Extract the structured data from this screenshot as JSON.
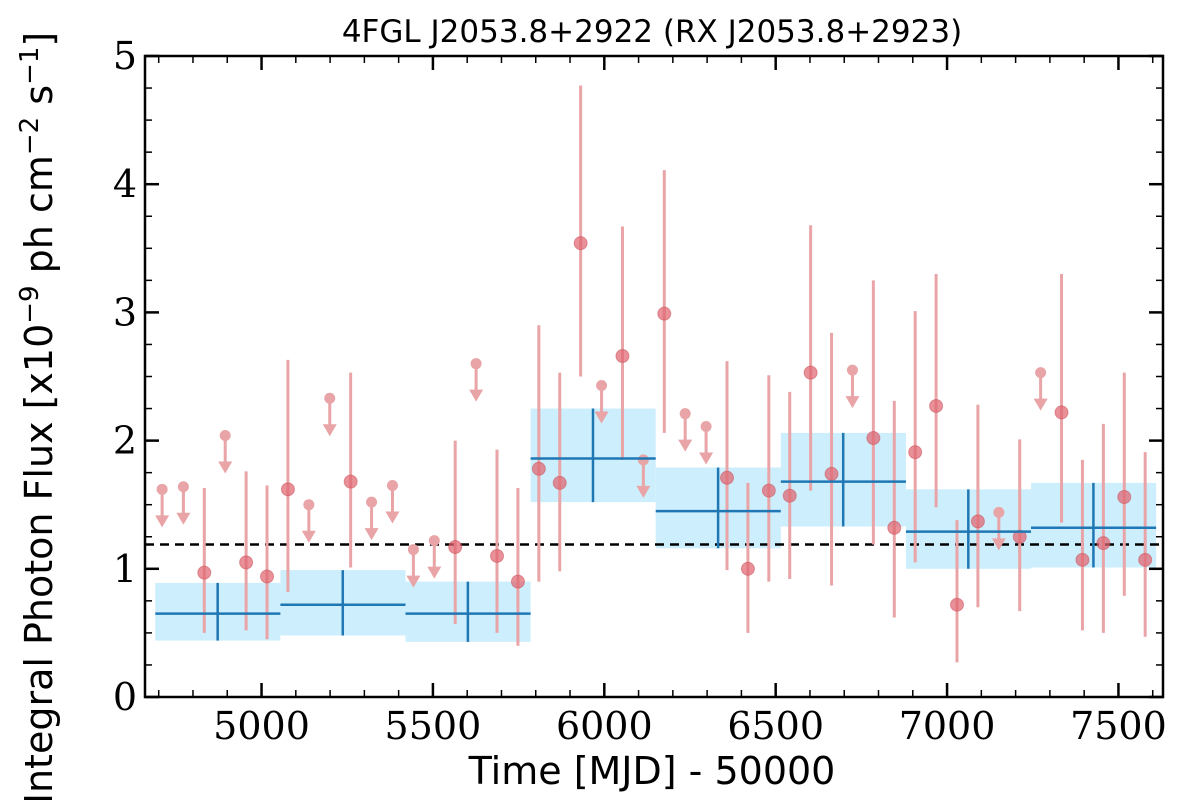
{
  "chart_data": {
    "type": "scatter",
    "title": "4FGL J2053.8+2922 (RX J2053.8+2923)",
    "xlabel": "Time [MJD] - 50000",
    "ylabel": "Integral Photon Flux [x10",
    "ylabel_exp": "−9",
    "ylabel_mid": " ph cm",
    "ylabel_exp2": "−2",
    "ylabel_tail": " s",
    "ylabel_exp3": "−1",
    "ylabel_close": "]",
    "xlim": [
      4660,
      7630
    ],
    "ylim": [
      0,
      5
    ],
    "xticks": [
      5000,
      5500,
      6000,
      6500,
      7000,
      7500
    ],
    "yticks": [
      0,
      1,
      2,
      3,
      4,
      5
    ],
    "reference_level": 1.19,
    "colors": {
      "points": "#e06570",
      "errorbars": "#e8a4a6",
      "bins_fill": "#cdeefc",
      "bins_line": "#1f77b4",
      "reference_line": "#000000"
    },
    "binned_series": [
      {
        "x_start": 4690,
        "x_end": 5055,
        "x": 4872,
        "y": 0.65,
        "y_low": 0.44,
        "y_high": 0.89
      },
      {
        "x_start": 5055,
        "x_end": 5420,
        "x": 5237,
        "y": 0.72,
        "y_low": 0.48,
        "y_high": 0.99
      },
      {
        "x_start": 5420,
        "x_end": 5785,
        "x": 5602,
        "y": 0.65,
        "y_low": 0.43,
        "y_high": 0.9
      },
      {
        "x_start": 5785,
        "x_end": 6150,
        "x": 5967,
        "y": 1.86,
        "y_low": 1.52,
        "y_high": 2.25
      },
      {
        "x_start": 6150,
        "x_end": 6515,
        "x": 6332,
        "y": 1.45,
        "y_low": 1.16,
        "y_high": 1.79
      },
      {
        "x_start": 6515,
        "x_end": 6880,
        "x": 6697,
        "y": 1.68,
        "y_low": 1.33,
        "y_high": 2.06
      },
      {
        "x_start": 6880,
        "x_end": 7245,
        "x": 7062,
        "y": 1.29,
        "y_low": 1.0,
        "y_high": 1.62
      },
      {
        "x_start": 7245,
        "x_end": 7610,
        "x": 7427,
        "y": 1.32,
        "y_low": 1.01,
        "y_high": 1.67
      }
    ],
    "points": [
      {
        "x": 4710,
        "y": 1.62,
        "upper_limit": true
      },
      {
        "x": 4772,
        "y": 1.64,
        "upper_limit": true
      },
      {
        "x": 4833,
        "y": 0.97,
        "y_low": 0.5,
        "y_high": 1.63
      },
      {
        "x": 4894,
        "y": 2.04,
        "upper_limit": true
      },
      {
        "x": 4955,
        "y": 1.05,
        "y_low": 0.52,
        "y_high": 1.76
      },
      {
        "x": 5016,
        "y": 0.94,
        "y_low": 0.45,
        "y_high": 1.65
      },
      {
        "x": 5077,
        "y": 1.62,
        "y_low": 0.82,
        "y_high": 2.63
      },
      {
        "x": 5138,
        "y": 1.5,
        "upper_limit": true
      },
      {
        "x": 5199,
        "y": 2.33,
        "upper_limit": true
      },
      {
        "x": 5260,
        "y": 1.68,
        "y_low": 1.01,
        "y_high": 2.53
      },
      {
        "x": 5321,
        "y": 1.52,
        "upper_limit": true
      },
      {
        "x": 5382,
        "y": 1.65,
        "upper_limit": true
      },
      {
        "x": 5443,
        "y": 1.15,
        "upper_limit": true
      },
      {
        "x": 5504,
        "y": 1.22,
        "upper_limit": true
      },
      {
        "x": 5565,
        "y": 1.17,
        "y_low": 0.57,
        "y_high": 2.0
      },
      {
        "x": 5626,
        "y": 2.6,
        "upper_limit": true
      },
      {
        "x": 5687,
        "y": 1.1,
        "y_low": 0.5,
        "y_high": 1.93
      },
      {
        "x": 5748,
        "y": 0.9,
        "y_low": 0.4,
        "y_high": 1.63
      },
      {
        "x": 5809,
        "y": 1.78,
        "y_low": 0.9,
        "y_high": 2.9
      },
      {
        "x": 5870,
        "y": 1.67,
        "y_low": 0.98,
        "y_high": 2.53
      },
      {
        "x": 5931,
        "y": 3.54,
        "y_low": 2.5,
        "y_high": 4.77
      },
      {
        "x": 5992,
        "y": 2.43,
        "upper_limit": true
      },
      {
        "x": 6053,
        "y": 2.66,
        "y_low": 1.85,
        "y_high": 3.67
      },
      {
        "x": 6114,
        "y": 1.85,
        "upper_limit": true
      },
      {
        "x": 6175,
        "y": 2.99,
        "y_low": 2.06,
        "y_high": 4.11
      },
      {
        "x": 6236,
        "y": 2.21,
        "upper_limit": true
      },
      {
        "x": 6297,
        "y": 2.11,
        "upper_limit": true
      },
      {
        "x": 6358,
        "y": 1.71,
        "y_low": 0.99,
        "y_high": 2.62
      },
      {
        "x": 6419,
        "y": 1.0,
        "y_low": 0.5,
        "y_high": 1.67
      },
      {
        "x": 6480,
        "y": 1.61,
        "y_low": 0.9,
        "y_high": 2.51
      },
      {
        "x": 6541,
        "y": 1.57,
        "y_low": 0.92,
        "y_high": 2.38
      },
      {
        "x": 6602,
        "y": 2.53,
        "y_low": 1.61,
        "y_high": 3.68
      },
      {
        "x": 6663,
        "y": 1.74,
        "y_low": 0.87,
        "y_high": 2.84
      },
      {
        "x": 6724,
        "y": 2.55,
        "upper_limit": true
      },
      {
        "x": 6785,
        "y": 2.02,
        "y_low": 1.19,
        "y_high": 3.25
      },
      {
        "x": 6846,
        "y": 1.32,
        "y_low": 0.62,
        "y_high": 2.31
      },
      {
        "x": 6907,
        "y": 1.91,
        "y_low": 1.05,
        "y_high": 3.01
      },
      {
        "x": 6968,
        "y": 2.27,
        "y_low": 1.48,
        "y_high": 3.3
      },
      {
        "x": 7029,
        "y": 0.72,
        "y_low": 0.27,
        "y_high": 1.38
      },
      {
        "x": 7090,
        "y": 1.37,
        "y_low": 0.7,
        "y_high": 2.28
      },
      {
        "x": 7151,
        "y": 1.44,
        "upper_limit": true
      },
      {
        "x": 7212,
        "y": 1.25,
        "y_low": 0.67,
        "y_high": 2.01
      },
      {
        "x": 7273,
        "y": 2.53,
        "upper_limit": true
      },
      {
        "x": 7334,
        "y": 2.22,
        "y_low": 1.36,
        "y_high": 3.3
      },
      {
        "x": 7395,
        "y": 1.07,
        "y_low": 0.52,
        "y_high": 1.85
      },
      {
        "x": 7456,
        "y": 1.2,
        "y_low": 0.5,
        "y_high": 2.13
      },
      {
        "x": 7517,
        "y": 1.56,
        "y_low": 0.79,
        "y_high": 2.53
      },
      {
        "x": 7578,
        "y": 1.07,
        "y_low": 0.47,
        "y_high": 1.91
      }
    ]
  }
}
